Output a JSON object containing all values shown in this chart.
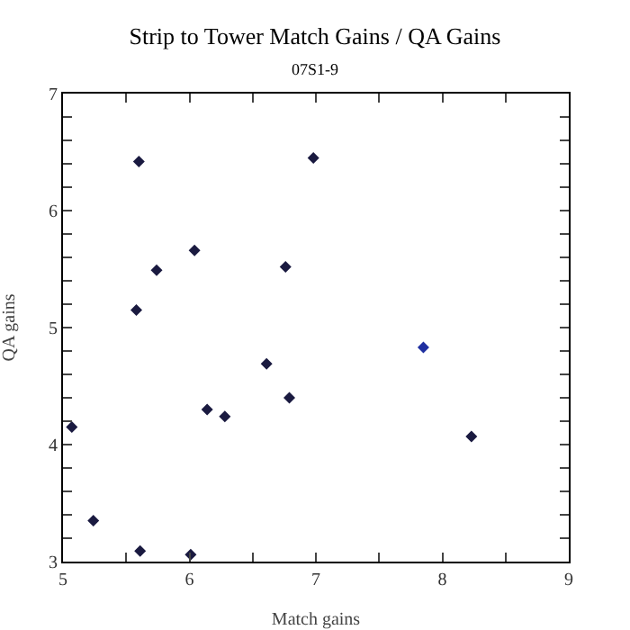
{
  "chart_data": {
    "type": "scatter",
    "title": "Strip to Tower Match Gains / QA Gains",
    "subtitle": "07S1-9",
    "xlabel": "Match gains",
    "ylabel": "QA gains",
    "x": [
      5.07,
      5.24,
      5.6,
      5.58,
      5.61,
      5.74,
      6.04,
      6.01,
      6.14,
      6.28,
      6.98,
      6.76,
      6.61,
      6.79,
      7.85,
      8.23
    ],
    "values": [
      4.15,
      3.35,
      6.42,
      5.15,
      3.09,
      5.49,
      5.66,
      3.06,
      4.3,
      4.24,
      6.45,
      5.52,
      4.69,
      4.4,
      4.83,
      4.07
    ],
    "colors": [
      "#1a1a40",
      "#1a1a40",
      "#1a1a40",
      "#1a1a40",
      "#1a1a40",
      "#1a1a40",
      "#1a1a40",
      "#1a1a40",
      "#1a1a40",
      "#1a1a40",
      "#1a1a40",
      "#1a1a40",
      "#1a1a40",
      "#1a1a40",
      "#1f2fa0",
      "#1a1a40"
    ],
    "marker": "diamond",
    "xlim": [
      5,
      9
    ],
    "ylim": [
      3,
      7
    ],
    "xticks": [
      5,
      {
        "value": 5.5,
        "label": null
      },
      6,
      {
        "value": 6.5,
        "label": null
      },
      7,
      {
        "value": 7.5,
        "label": null
      },
      8,
      {
        "value": 8.5,
        "label": null
      },
      9
    ],
    "yticks": [
      3,
      {
        "value": 3.2,
        "label": null
      },
      {
        "value": 3.4,
        "label": null
      },
      {
        "value": 3.6,
        "label": null
      },
      {
        "value": 3.8,
        "label": null
      },
      4,
      {
        "value": 4.2,
        "label": null
      },
      {
        "value": 4.4,
        "label": null
      },
      {
        "value": 4.6,
        "label": null
      },
      {
        "value": 4.8,
        "label": null
      },
      5,
      {
        "value": 5.2,
        "label": null
      },
      {
        "value": 5.4,
        "label": null
      },
      {
        "value": 5.6,
        "label": null
      },
      {
        "value": 5.8,
        "label": null
      },
      6,
      {
        "value": 6.2,
        "label": null
      },
      {
        "value": 6.4,
        "label": null
      },
      {
        "value": 6.6,
        "label": null
      },
      {
        "value": 6.8,
        "label": null
      },
      7
    ],
    "grid": false
  }
}
